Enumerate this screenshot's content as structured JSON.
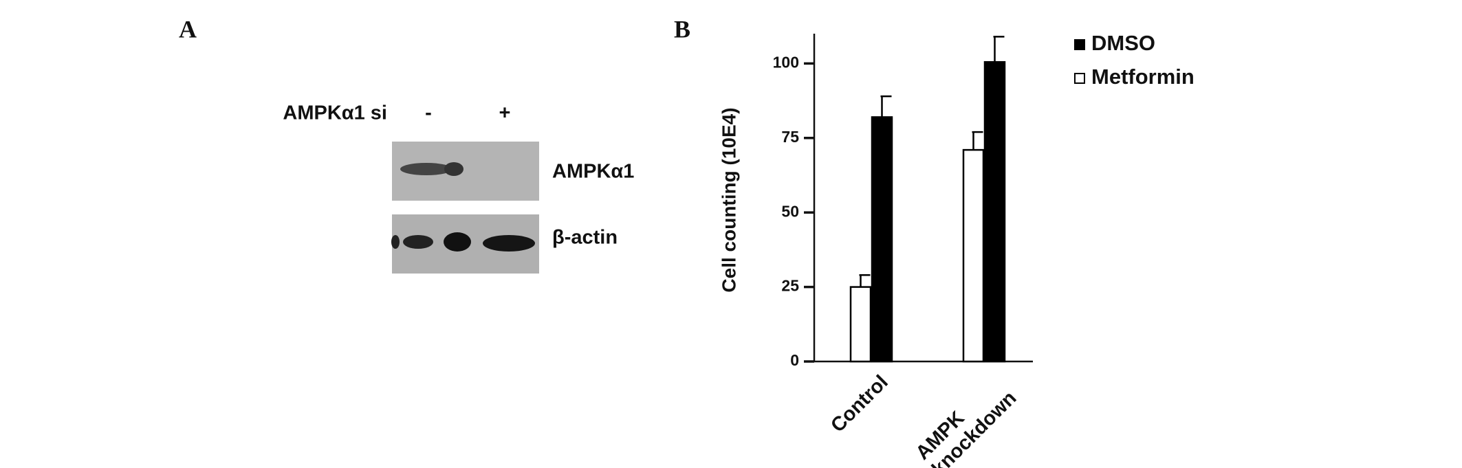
{
  "panel_labels": [
    "A",
    "B"
  ],
  "blot": {
    "condition": "AMPKα1 si",
    "lanes": [
      "-",
      "+"
    ],
    "rows": [
      "AMPKα1",
      "β-actin"
    ]
  },
  "chart_data": {
    "type": "bar",
    "y_label": "Cell counting (10E4)",
    "categories": [
      "Control",
      "AMPK\nknockdown"
    ],
    "series": [
      {
        "name": "Metformin",
        "color": "#ffffff",
        "values": [
          25,
          71
        ],
        "errors": [
          4,
          6
        ]
      },
      {
        "name": "DMSO",
        "color": "#000000",
        "values": [
          82,
          100.5
        ],
        "errors": [
          7,
          8.5
        ]
      }
    ],
    "ylim": [
      0,
      110
    ],
    "yticks": [
      0,
      25,
      50,
      75,
      100
    ]
  }
}
